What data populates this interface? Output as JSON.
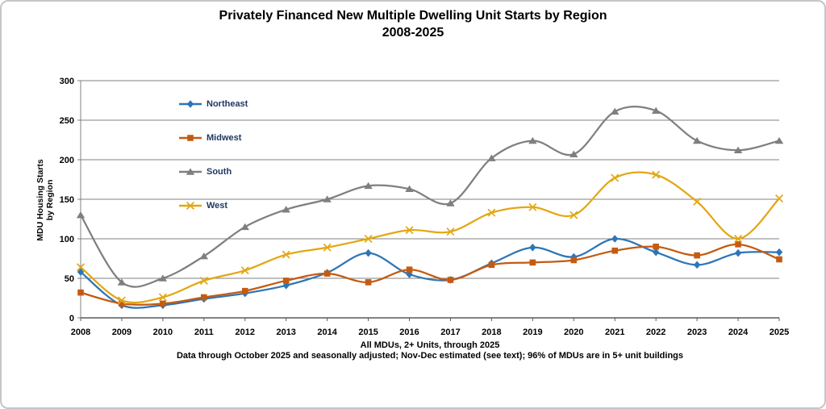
{
  "title": {
    "line1": "Privately Financed New Multiple Dwelling Unit Starts by Region",
    "line2": "2008-2025"
  },
  "y_axis_title": {
    "line1": "MDU Housing Starts",
    "line2": "by Region"
  },
  "footnotes": {
    "line1": "All MDUs, 2+ Units, through 2025",
    "line2": "Data through October 2025 and seasonally adjusted; Nov-Dec estimated (see text); 96% of MDUs are in 5+ unit buildings"
  },
  "chart_data": {
    "type": "line",
    "title": "Privately Financed New Multiple Dwelling Unit Starts by Region 2008-2025",
    "categories": [
      "2008",
      "2009",
      "2010",
      "2011",
      "2012",
      "2013",
      "2014",
      "2015",
      "2016",
      "2017",
      "2018",
      "2019",
      "2020",
      "2021",
      "2022",
      "2023",
      "2024",
      "2025"
    ],
    "series": [
      {
        "name": "Northeast",
        "color": "#2E75B6",
        "marker": "diamond",
        "values": [
          58,
          16,
          16,
          24,
          31,
          41,
          57,
          82,
          55,
          48,
          69,
          89,
          77,
          100,
          83,
          67,
          82,
          83
        ]
      },
      {
        "name": "Midwest",
        "color": "#C55A11",
        "marker": "square",
        "values": [
          32,
          18,
          18,
          26,
          34,
          47,
          56,
          45,
          61,
          48,
          67,
          70,
          73,
          85,
          90,
          79,
          93,
          74
        ]
      },
      {
        "name": "South",
        "color": "#7F7F7F",
        "marker": "triangle",
        "values": [
          130,
          45,
          50,
          78,
          115,
          137,
          150,
          167,
          163,
          145,
          202,
          224,
          207,
          261,
          262,
          224,
          212,
          224
        ]
      },
      {
        "name": "West",
        "color": "#E2A713",
        "marker": "x",
        "values": [
          64,
          22,
          26,
          47,
          60,
          80,
          89,
          100,
          111,
          109,
          133,
          140,
          130,
          177,
          181,
          147,
          100,
          151
        ]
      }
    ],
    "xlabel": "",
    "ylabel": "MDU Housing Starts by Region",
    "ylim": [
      0,
      300
    ],
    "ytick_interval": 50,
    "ytick_labels": [
      "0",
      "50",
      "100",
      "150",
      "200",
      "250",
      "300"
    ],
    "grid": true,
    "line_style": "smooth",
    "legend_position": "inside-top-left"
  },
  "colors": {
    "gridline": "#808080",
    "axis_line": "#595959",
    "tick_text": "#000000",
    "legend_text": "#1F3864",
    "panel_border": "#C6C6C6"
  }
}
